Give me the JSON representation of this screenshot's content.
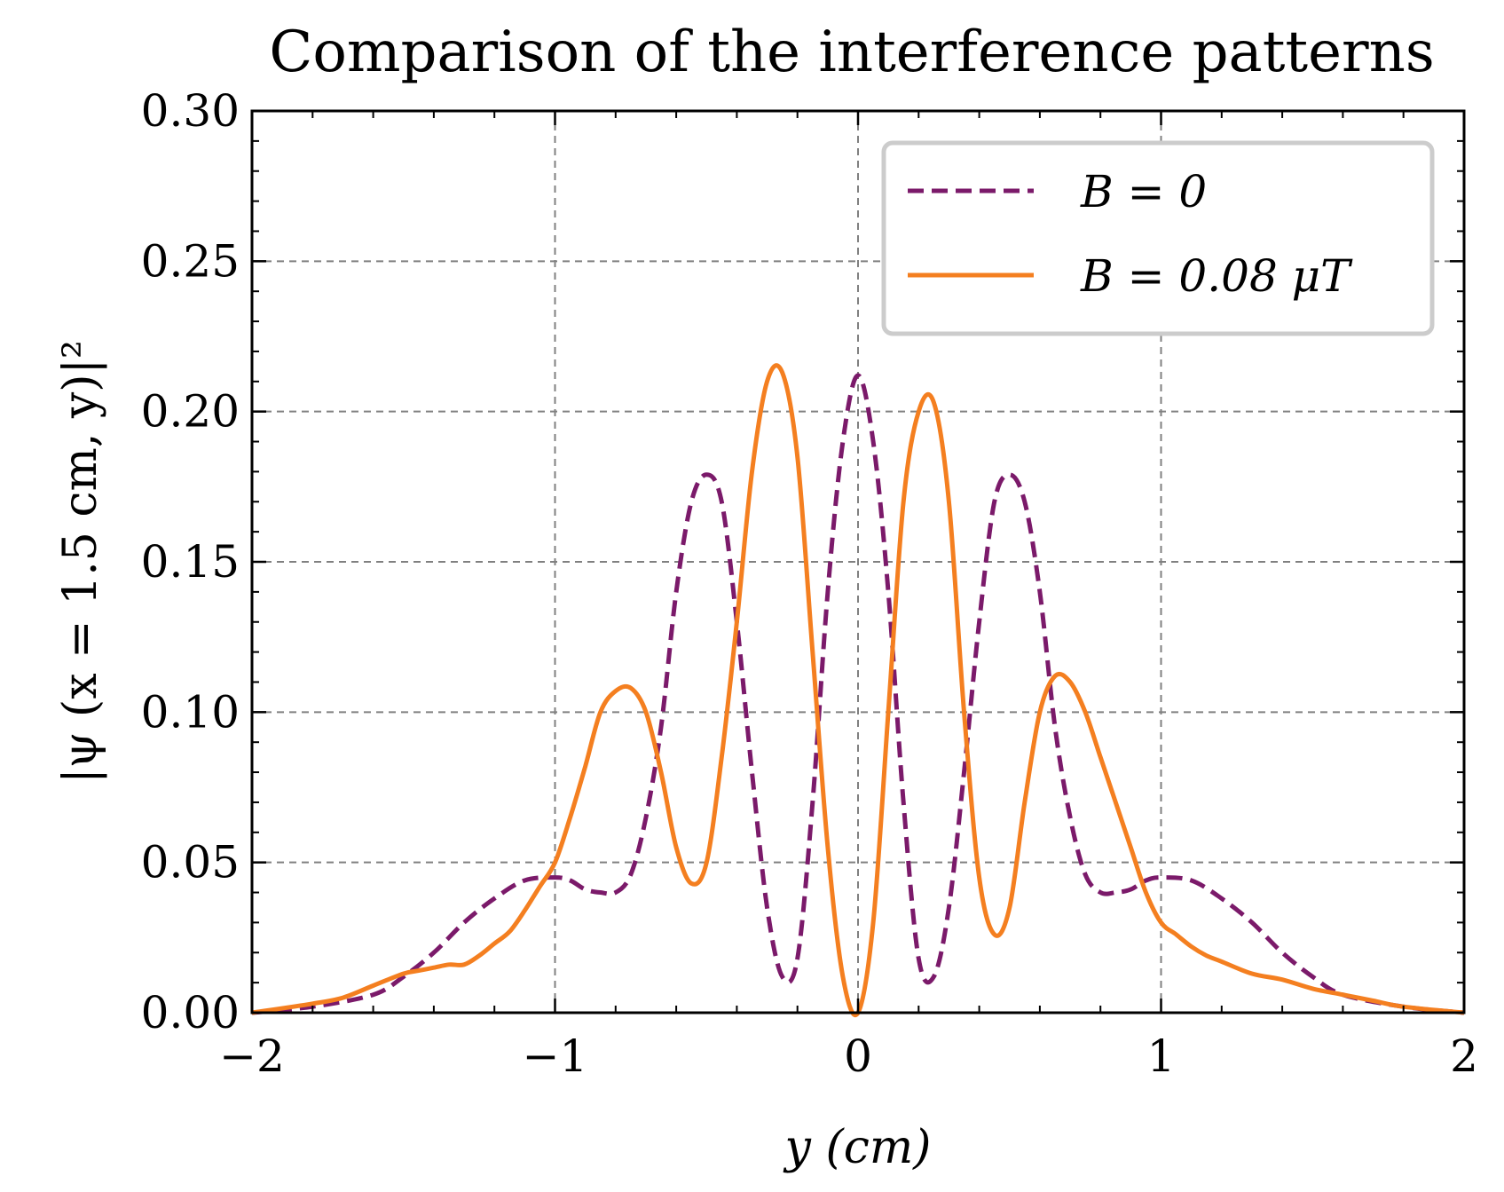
{
  "chart_data": {
    "type": "line",
    "title": "Comparison of the interference patterns",
    "xlabel": "y (cm)",
    "ylabel": "|ψ (x = 1.5 cm, y)|²",
    "xlim": [
      -2,
      2
    ],
    "ylim": [
      0,
      0.3
    ],
    "xticks": [
      -2,
      -1,
      0,
      1,
      2
    ],
    "xtick_labels": [
      "−2",
      "−1",
      "0",
      "1",
      "2"
    ],
    "yticks": [
      0,
      0.05,
      0.1,
      0.15,
      0.2,
      0.25,
      0.3
    ],
    "ytick_labels": [
      "0.00",
      "0.05",
      "0.10",
      "0.15",
      "0.20",
      "0.25",
      "0.30"
    ],
    "grid": true,
    "legend_position": "top-right",
    "series": [
      {
        "name": "B = 0",
        "color": "#7b1a6a",
        "style": "dashed",
        "x": [
          -2.0,
          -1.8,
          -1.6,
          -1.5,
          -1.4,
          -1.3,
          -1.2,
          -1.1,
          -1.0,
          -0.95,
          -0.9,
          -0.85,
          -0.8,
          -0.75,
          -0.7,
          -0.65,
          -0.6,
          -0.55,
          -0.5,
          -0.45,
          -0.4,
          -0.35,
          -0.3,
          -0.25,
          -0.2,
          -0.15,
          -0.1,
          -0.05,
          0.0,
          0.05,
          0.1,
          0.15,
          0.2,
          0.25,
          0.3,
          0.35,
          0.4,
          0.45,
          0.5,
          0.55,
          0.6,
          0.65,
          0.7,
          0.75,
          0.8,
          0.85,
          0.9,
          0.95,
          1.0,
          1.1,
          1.2,
          1.3,
          1.4,
          1.5,
          1.6,
          1.8,
          2.0
        ],
        "y": [
          0.0,
          0.002,
          0.006,
          0.012,
          0.02,
          0.03,
          0.038,
          0.044,
          0.045,
          0.044,
          0.041,
          0.04,
          0.04,
          0.046,
          0.065,
          0.095,
          0.14,
          0.17,
          0.179,
          0.17,
          0.13,
          0.08,
          0.035,
          0.012,
          0.018,
          0.07,
          0.14,
          0.19,
          0.212,
          0.19,
          0.14,
          0.07,
          0.018,
          0.012,
          0.035,
          0.08,
          0.13,
          0.17,
          0.179,
          0.17,
          0.14,
          0.095,
          0.065,
          0.046,
          0.04,
          0.04,
          0.041,
          0.044,
          0.045,
          0.044,
          0.038,
          0.03,
          0.02,
          0.012,
          0.006,
          0.002,
          0.0
        ]
      },
      {
        "name": "B = 0.08 μT",
        "color": "#f47f20",
        "style": "solid",
        "x": [
          -2.0,
          -1.8,
          -1.7,
          -1.6,
          -1.5,
          -1.45,
          -1.4,
          -1.35,
          -1.3,
          -1.25,
          -1.2,
          -1.15,
          -1.1,
          -1.05,
          -1.0,
          -0.95,
          -0.9,
          -0.85,
          -0.8,
          -0.75,
          -0.7,
          -0.65,
          -0.6,
          -0.55,
          -0.5,
          -0.45,
          -0.4,
          -0.35,
          -0.3,
          -0.25,
          -0.2,
          -0.15,
          -0.1,
          -0.05,
          0.0,
          0.05,
          0.1,
          0.15,
          0.2,
          0.25,
          0.3,
          0.35,
          0.4,
          0.45,
          0.5,
          0.55,
          0.6,
          0.65,
          0.7,
          0.75,
          0.8,
          0.85,
          0.9,
          0.95,
          1.0,
          1.05,
          1.1,
          1.15,
          1.2,
          1.3,
          1.4,
          1.5,
          1.6,
          1.7,
          1.8,
          2.0
        ],
        "y": [
          0.0,
          0.003,
          0.005,
          0.009,
          0.013,
          0.014,
          0.015,
          0.016,
          0.016,
          0.019,
          0.023,
          0.027,
          0.034,
          0.042,
          0.05,
          0.065,
          0.082,
          0.1,
          0.107,
          0.108,
          0.1,
          0.08,
          0.055,
          0.043,
          0.05,
          0.085,
          0.13,
          0.18,
          0.21,
          0.213,
          0.185,
          0.12,
          0.055,
          0.012,
          0.0,
          0.03,
          0.1,
          0.17,
          0.2,
          0.203,
          0.17,
          0.1,
          0.045,
          0.026,
          0.035,
          0.07,
          0.1,
          0.112,
          0.11,
          0.1,
          0.085,
          0.07,
          0.055,
          0.04,
          0.03,
          0.026,
          0.022,
          0.019,
          0.017,
          0.013,
          0.011,
          0.008,
          0.006,
          0.004,
          0.002,
          0.0
        ]
      }
    ]
  }
}
